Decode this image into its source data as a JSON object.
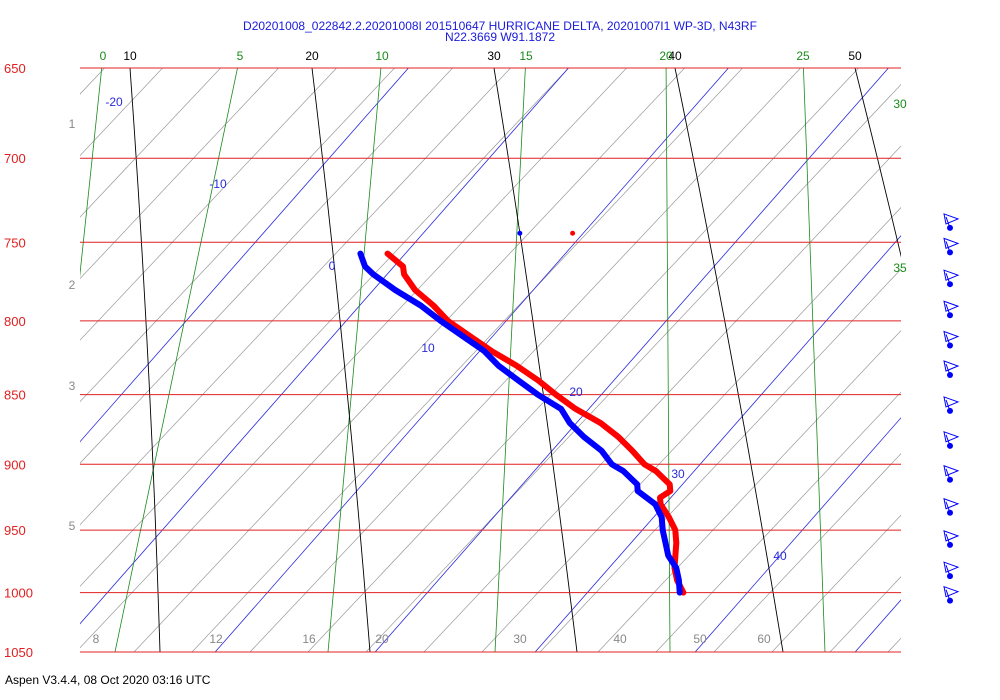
{
  "header": {
    "line1": "D20201008_022842.2.20201008I 201510647 HURRICANE DELTA, 20201007I1 WP-3D, N43RF",
    "line2": "N22.3669 W91.1872"
  },
  "footer": {
    "text": "Aspen V3.4.4, 08 Oct 2020  03:16 UTC"
  },
  "colors": {
    "isobar": "#e02020",
    "isotherm": "#000000",
    "mixing_ratio": "#1a8a1a",
    "theta_e": "#2a2adc",
    "dry_adiabat": "#999999",
    "temperature": "#ff0000",
    "dewpoint": "#0000ff",
    "wind_barb": "#0000ff"
  },
  "chart_data": {
    "type": "skew-t log-p",
    "pressure_axis": {
      "labels": [
        "650",
        "700",
        "750",
        "800",
        "850",
        "900",
        "950",
        "1000",
        "1050"
      ],
      "values": [
        650,
        700,
        750,
        800,
        850,
        900,
        950,
        1000,
        1050
      ],
      "range_hpa": [
        650,
        1050
      ]
    },
    "isotherms": {
      "labels": [
        "10",
        "20",
        "30",
        "40",
        "50"
      ],
      "values_c": [
        10,
        20,
        30,
        40,
        50
      ]
    },
    "mixing_ratio_lines": {
      "labels": [
        "0",
        "5",
        "10",
        "15",
        "20",
        "25",
        "30",
        "35"
      ],
      "values_gkg": [
        0,
        5,
        10,
        15,
        20,
        25,
        30,
        35
      ]
    },
    "theta_e_lines": {
      "labels": [
        "-20",
        "-10",
        "0",
        "10",
        "20",
        "30",
        "40"
      ],
      "values": [
        -20,
        -10,
        0,
        10,
        20,
        30,
        40
      ]
    },
    "adiabat_left_labels": [
      "1",
      "2",
      "3",
      "5"
    ],
    "adiabat_bottom_labels": [
      "8",
      "12",
      "16",
      "20",
      "30",
      "40",
      "50",
      "60"
    ],
    "temperature_profile": [
      {
        "p": 1000,
        "t": 25.0
      },
      {
        "p": 990,
        "t": 24.9
      },
      {
        "p": 980,
        "t": 25.0
      },
      {
        "p": 970,
        "t": 25.3
      },
      {
        "p": 960,
        "t": 25.6
      },
      {
        "p": 950,
        "t": 25.8
      },
      {
        "p": 940,
        "t": 25.7
      },
      {
        "p": 930,
        "t": 25.5
      },
      {
        "p": 925,
        "t": 25.6
      },
      {
        "p": 920,
        "t": 26.3
      },
      {
        "p": 915,
        "t": 26.4
      },
      {
        "p": 905,
        "t": 25.9
      },
      {
        "p": 900,
        "t": 25.4
      },
      {
        "p": 890,
        "t": 25.0
      },
      {
        "p": 880,
        "t": 24.5
      },
      {
        "p": 870,
        "t": 23.8
      },
      {
        "p": 860,
        "t": 22.7
      },
      {
        "p": 850,
        "t": 21.9
      },
      {
        "p": 840,
        "t": 21.2
      },
      {
        "p": 830,
        "t": 20.3
      },
      {
        "p": 820,
        "t": 19.2
      },
      {
        "p": 810,
        "t": 18.3
      },
      {
        "p": 800,
        "t": 17.4
      },
      {
        "p": 790,
        "t": 16.9
      },
      {
        "p": 780,
        "t": 16.2
      },
      {
        "p": 770,
        "t": 15.9
      },
      {
        "p": 765,
        "t": 16.0
      },
      {
        "p": 757,
        "t": 15.4
      }
    ],
    "dewpoint_profile": [
      {
        "p": 1000,
        "t": 24.8
      },
      {
        "p": 990,
        "t": 25.0
      },
      {
        "p": 980,
        "t": 25.1
      },
      {
        "p": 970,
        "t": 24.9
      },
      {
        "p": 960,
        "t": 25.0
      },
      {
        "p": 950,
        "t": 25.1
      },
      {
        "p": 940,
        "t": 25.3
      },
      {
        "p": 930,
        "t": 25.2
      },
      {
        "p": 920,
        "t": 24.5
      },
      {
        "p": 915,
        "t": 24.6
      },
      {
        "p": 905,
        "t": 24.1
      },
      {
        "p": 900,
        "t": 23.6
      },
      {
        "p": 890,
        "t": 23.3
      },
      {
        "p": 880,
        "t": 22.6
      },
      {
        "p": 870,
        "t": 22.1
      },
      {
        "p": 860,
        "t": 21.9
      },
      {
        "p": 850,
        "t": 20.9
      },
      {
        "p": 840,
        "t": 20.1
      },
      {
        "p": 830,
        "t": 19.3
      },
      {
        "p": 820,
        "t": 18.8
      },
      {
        "p": 810,
        "t": 17.9
      },
      {
        "p": 800,
        "t": 17.0
      },
      {
        "p": 790,
        "t": 16.2
      },
      {
        "p": 780,
        "t": 15.1
      },
      {
        "p": 770,
        "t": 14.2
      },
      {
        "p": 765,
        "t": 13.9
      },
      {
        "p": 757,
        "t": 13.9
      }
    ],
    "top_markers": {
      "temperature": {
        "p": 750,
        "t": 14.8
      },
      "dewpoint": {
        "p": 750,
        "t": 11.0
      }
    },
    "wind_barbs": [
      {
        "p": 740
      },
      {
        "p": 755
      },
      {
        "p": 775
      },
      {
        "p": 795
      },
      {
        "p": 815
      },
      {
        "p": 835
      },
      {
        "p": 860
      },
      {
        "p": 885
      },
      {
        "p": 910
      },
      {
        "p": 935
      },
      {
        "p": 960
      },
      {
        "p": 985
      },
      {
        "p": 1005
      }
    ]
  }
}
